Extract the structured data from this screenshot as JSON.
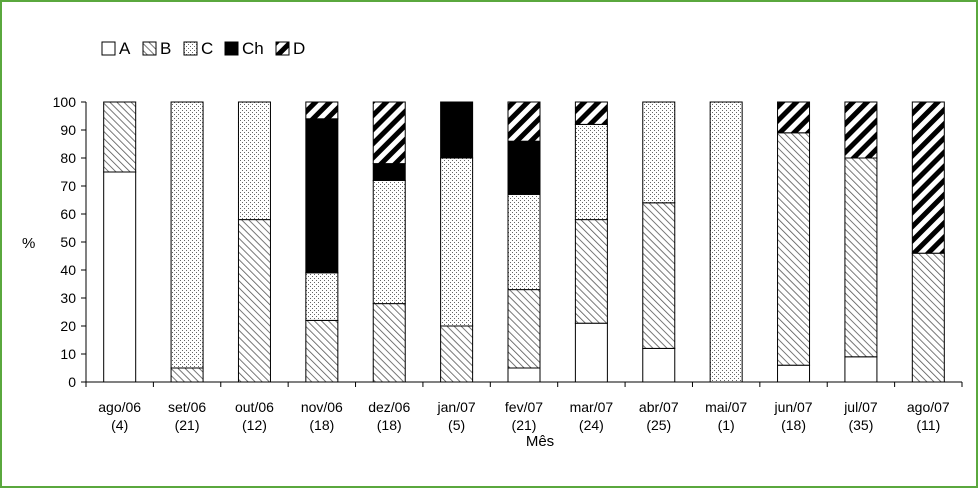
{
  "chart_data": {
    "type": "bar",
    "stacked": true,
    "percent": true,
    "xlabel": "Mês",
    "ylabel": "%",
    "ylim": [
      0,
      100
    ],
    "yticks": [
      0,
      10,
      20,
      30,
      40,
      50,
      60,
      70,
      80,
      90,
      100
    ],
    "legend_position": "top-left",
    "categories": [
      "ago/06",
      "set/06",
      "out/06",
      "nov/06",
      "dez/06",
      "jan/07",
      "fev/07",
      "mar/07",
      "abr/07",
      "mai/07",
      "jun/07",
      "jul/07",
      "ago/07"
    ],
    "counts": [
      "(4)",
      "(21)",
      "(12)",
      "(18)",
      "(18)",
      "(5)",
      "(21)",
      "(24)",
      "(25)",
      "(1)",
      "(18)",
      "(35)",
      "(11)"
    ],
    "series": [
      {
        "name": "A",
        "pattern": "white",
        "values": [
          75,
          0,
          0,
          0,
          0,
          0,
          5,
          21,
          12,
          0,
          6,
          9,
          0
        ]
      },
      {
        "name": "B",
        "pattern": "hatch",
        "values": [
          25,
          5,
          58,
          22,
          28,
          20,
          28,
          37,
          52,
          0,
          83,
          71,
          46
        ]
      },
      {
        "name": "C",
        "pattern": "dots",
        "values": [
          0,
          95,
          42,
          17,
          44,
          60,
          34,
          34,
          36,
          100,
          0,
          0,
          0
        ]
      },
      {
        "name": "Ch",
        "pattern": "black",
        "values": [
          0,
          0,
          0,
          55,
          6,
          20,
          19,
          0,
          0,
          0,
          0,
          0,
          0
        ]
      },
      {
        "name": "D",
        "pattern": "diagonal",
        "values": [
          0,
          0,
          0,
          6,
          22,
          0,
          14,
          8,
          0,
          0,
          11,
          20,
          54
        ]
      }
    ]
  }
}
